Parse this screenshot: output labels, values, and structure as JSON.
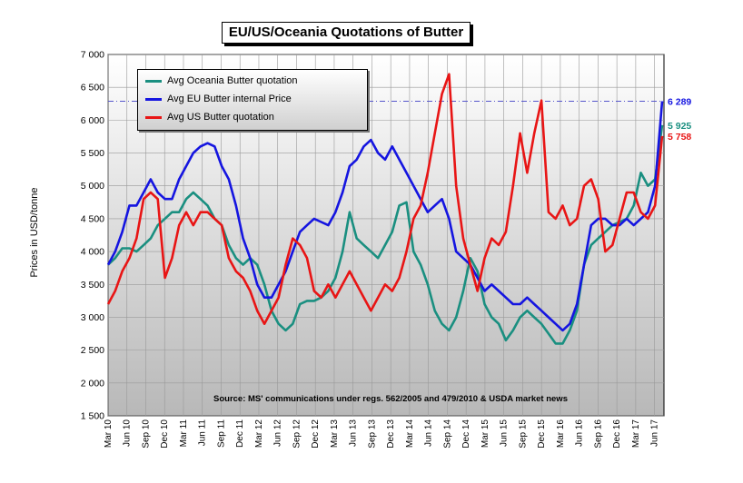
{
  "chart_data": {
    "type": "line",
    "title": "EU/US/Oceania Quotations of Butter",
    "ylabel": "Prices in USD/tonne",
    "xlabel": "",
    "ylim": [
      1500,
      7000
    ],
    "yticks": [
      "1 500",
      "2 000",
      "2 500",
      "3 000",
      "3 500",
      "4 000",
      "4 500",
      "5 000",
      "5 500",
      "6 000",
      "6 500",
      "7 000"
    ],
    "x_tick_labels": [
      "Mar 10",
      "Jun 10",
      "Sep 10",
      "Dec 10",
      "Mar 11",
      "Jun 11",
      "Sep 11",
      "Dec 11",
      "Mar 12",
      "Jun 12",
      "Sep 12",
      "Dec 12",
      "Mar 13",
      "Jun 13",
      "Sep 13",
      "Dec 13",
      "Mar 14",
      "Jun 14",
      "Sep 14",
      "Dec 14",
      "Mar 15",
      "Jun 15",
      "Sep 15",
      "Dec 15",
      "Mar 16",
      "Jun 16",
      "Sep 16",
      "Dec 16",
      "Mar 17",
      "Jun 17"
    ],
    "x_start": "Mar 10",
    "x_end": "Jun 17",
    "grid": true,
    "legend_position": "top-left",
    "reference_line": 6289,
    "source_note": "Source: MS' communications  under regs. 562/2005  and 479/2010 & USDA market news",
    "series": [
      {
        "name": "Avg Oceania Butter quotation",
        "color": "#1a8f80",
        "end_label": "5 925",
        "values": [
          3800,
          3900,
          4050,
          4050,
          4000,
          4100,
          4200,
          4400,
          4500,
          4600,
          4600,
          4800,
          4900,
          4800,
          4700,
          4500,
          4400,
          4100,
          3900,
          3800,
          3900,
          3800,
          3500,
          3100,
          2900,
          2800,
          2900,
          3200,
          3250,
          3250,
          3300,
          3400,
          3600,
          4000,
          4600,
          4200,
          4100,
          4000,
          3900,
          4100,
          4300,
          4700,
          4750,
          4000,
          3800,
          3500,
          3100,
          2900,
          2800,
          3000,
          3400,
          3900,
          3700,
          3200,
          3000,
          2900,
          2650,
          2800,
          3000,
          3100,
          3000,
          2900,
          2750,
          2600,
          2600,
          2800,
          3100,
          3800,
          4100,
          4200,
          4300,
          4400,
          4450,
          4500,
          4700,
          5200,
          5000,
          5100,
          5925
        ]
      },
      {
        "name": "Avg EU Butter internal Price",
        "color": "#1515e0",
        "end_label": "6 289",
        "values": [
          3800,
          4000,
          4300,
          4700,
          4700,
          4900,
          5100,
          4900,
          4800,
          4800,
          5100,
          5300,
          5500,
          5600,
          5650,
          5600,
          5300,
          5100,
          4700,
          4200,
          3900,
          3500,
          3300,
          3300,
          3500,
          3700,
          4000,
          4300,
          4400,
          4500,
          4450,
          4400,
          4600,
          4900,
          5300,
          5400,
          5600,
          5700,
          5500,
          5400,
          5600,
          5400,
          5200,
          5000,
          4800,
          4600,
          4700,
          4800,
          4500,
          4000,
          3900,
          3800,
          3600,
          3400,
          3500,
          3400,
          3300,
          3200,
          3200,
          3300,
          3200,
          3100,
          3000,
          2900,
          2800,
          2900,
          3200,
          3800,
          4400,
          4500,
          4500,
          4400,
          4400,
          4500,
          4400,
          4500,
          4600,
          5000,
          6289
        ]
      },
      {
        "name": "Avg US Butter quotation",
        "color": "#e81515",
        "end_label": "5 758",
        "values": [
          3200,
          3400,
          3700,
          3900,
          4200,
          4800,
          4900,
          4800,
          3600,
          3900,
          4400,
          4600,
          4400,
          4600,
          4600,
          4500,
          4400,
          3900,
          3700,
          3600,
          3400,
          3100,
          2900,
          3100,
          3300,
          3800,
          4200,
          4100,
          3900,
          3400,
          3300,
          3500,
          3300,
          3500,
          3700,
          3500,
          3300,
          3100,
          3300,
          3500,
          3400,
          3600,
          4000,
          4500,
          4700,
          5200,
          5800,
          6400,
          6700,
          5000,
          4200,
          3800,
          3400,
          3900,
          4200,
          4100,
          4300,
          5000,
          5800,
          5200,
          5800,
          6300,
          4600,
          4500,
          4700,
          4400,
          4500,
          5000,
          5100,
          4800,
          4000,
          4100,
          4500,
          4900,
          4900,
          4600,
          4500,
          4700,
          5758
        ]
      }
    ]
  }
}
